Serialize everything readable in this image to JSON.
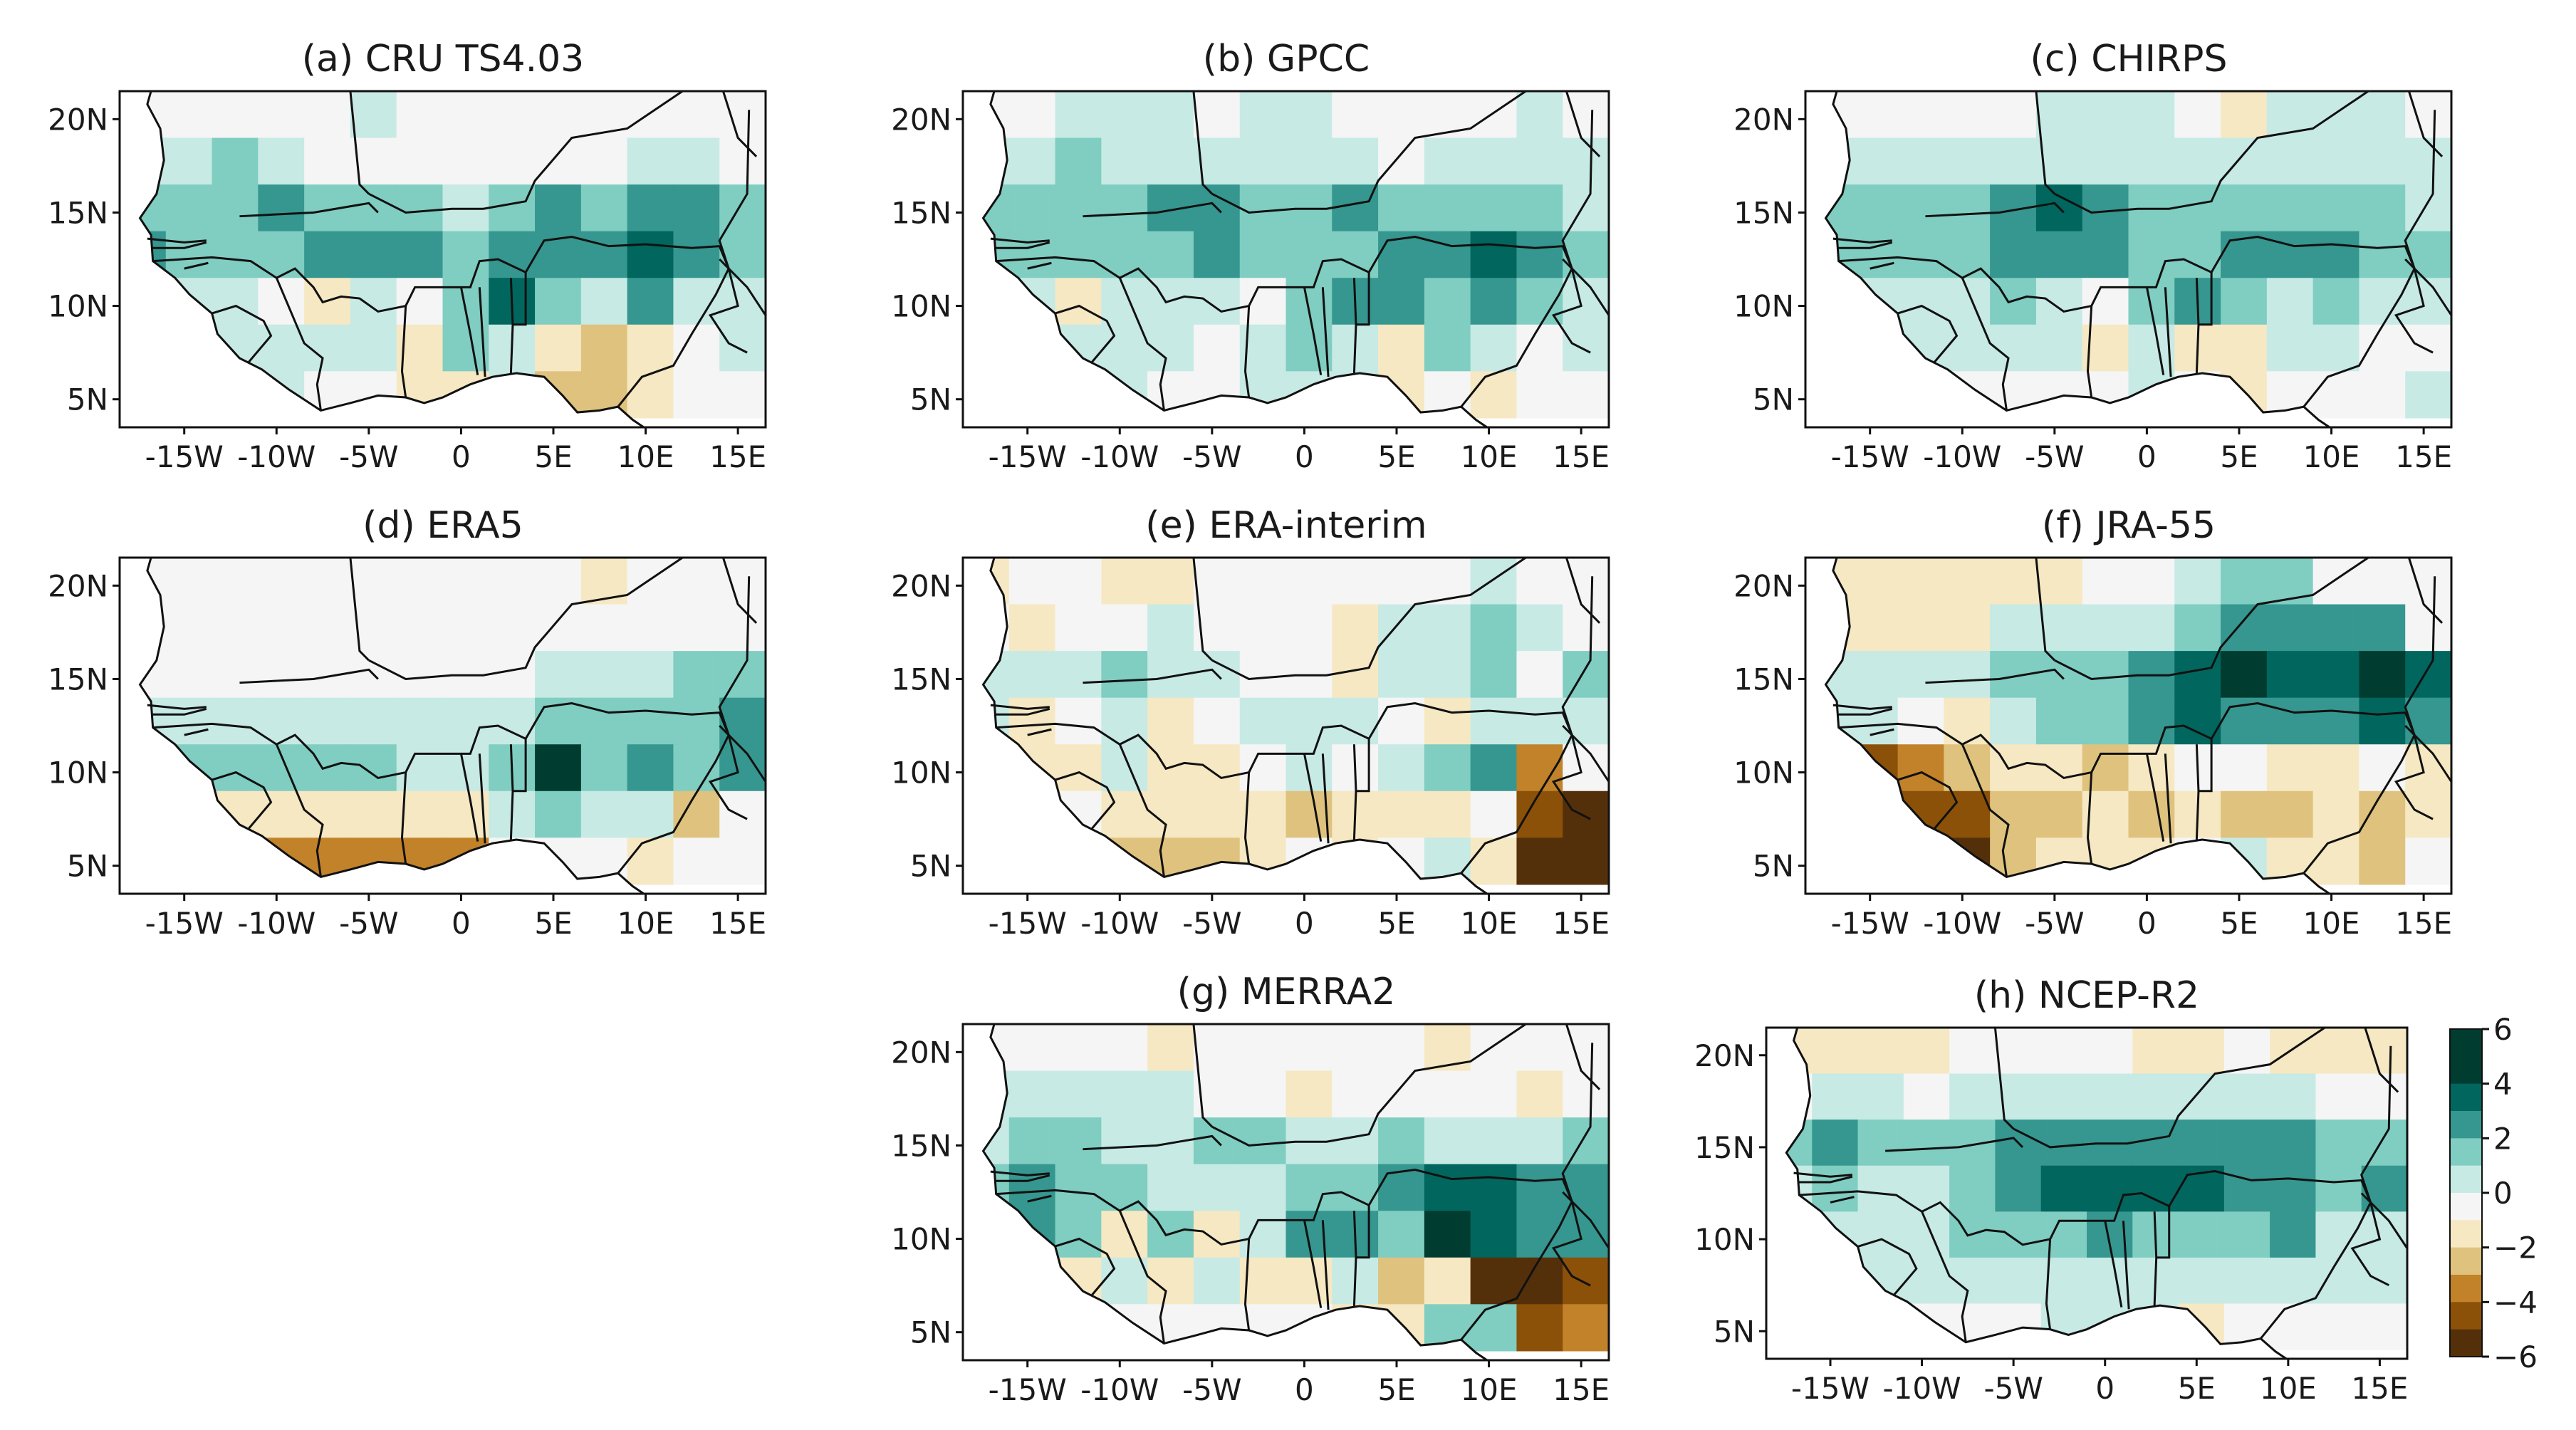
{
  "figure": {
    "description_axes": "longitude vs latitude",
    "colors": {
      "diverging_scale": [
        "#54300a",
        "#8c5109",
        "#c1822a",
        "#dfc27d",
        "#f6e8c3",
        "#f5f5f5",
        "#c7eae5",
        "#80cdc1",
        "#35978f",
        "#01665e",
        "#003c30"
      ],
      "land_outline": "#111111"
    }
  },
  "chart_data": [
    {
      "type": "heatmap",
      "panel": "a",
      "title": "(a) CRU TS4.03",
      "x_ticks": [
        "-15W",
        "-10W",
        "-5W",
        "0",
        "5E",
        "10E",
        "15E"
      ],
      "y_ticks": [
        "20N",
        "15N",
        "10N",
        "5N"
      ],
      "xlim": [
        -18.5,
        16.5
      ],
      "ylim": [
        3.5,
        21.5
      ],
      "grid_lon0": -18.5,
      "grid_lat0": 21.5,
      "cell_deg": 2.5,
      "grid": [
        [
          0,
          0,
          0,
          0,
          0,
          1,
          0,
          0,
          0,
          0,
          0,
          0,
          0,
          0
        ],
        [
          1,
          1,
          2,
          1,
          0,
          0,
          0,
          0,
          0,
          0,
          0,
          1,
          1,
          0
        ],
        [
          2,
          2,
          2,
          3,
          2,
          2,
          2,
          1,
          2,
          3,
          2,
          3,
          3,
          2
        ],
        [
          3,
          2,
          2,
          2,
          3,
          3,
          3,
          2,
          3,
          3,
          3,
          4,
          3,
          2
        ],
        [
          1,
          1,
          1,
          0,
          -1,
          1,
          0,
          2,
          4,
          2,
          1,
          3,
          1,
          1
        ],
        [
          1,
          3,
          1,
          1,
          1,
          1,
          -1,
          2,
          1,
          -1,
          -2,
          -1,
          0,
          1
        ],
        [
          0,
          1,
          1,
          1,
          0,
          0,
          -1,
          -1,
          1,
          -2,
          -2,
          -1,
          0,
          0
        ]
      ]
    },
    {
      "type": "heatmap",
      "panel": "b",
      "title": "(b) GPCC",
      "x_ticks": [
        "-15W",
        "-10W",
        "-5W",
        "0",
        "5E",
        "10E",
        "15E"
      ],
      "y_ticks": [
        "20N",
        "15N",
        "10N",
        "5N"
      ],
      "xlim": [
        -18.5,
        16.5
      ],
      "ylim": [
        3.5,
        21.5
      ],
      "grid_lon0": -18.5,
      "grid_lat0": 21.5,
      "cell_deg": 2.5,
      "grid": [
        [
          0,
          0,
          1,
          1,
          1,
          0,
          1,
          1,
          0,
          0,
          0,
          0,
          1,
          0
        ],
        [
          1,
          1,
          2,
          1,
          1,
          1,
          1,
          1,
          1,
          0,
          1,
          1,
          1,
          1
        ],
        [
          2,
          2,
          2,
          2,
          3,
          3,
          2,
          2,
          3,
          2,
          2,
          2,
          2,
          1
        ],
        [
          2,
          2,
          2,
          2,
          2,
          3,
          2,
          2,
          2,
          3,
          3,
          4,
          3,
          2
        ],
        [
          1,
          1,
          -1,
          1,
          1,
          1,
          0,
          2,
          3,
          3,
          2,
          3,
          2,
          1
        ],
        [
          1,
          -1,
          1,
          1,
          1,
          0,
          1,
          2,
          1,
          -1,
          2,
          1,
          0,
          1
        ],
        [
          0,
          0,
          1,
          1,
          0,
          0,
          1,
          1,
          1,
          -1,
          0,
          -1,
          0,
          0
        ]
      ]
    },
    {
      "type": "heatmap",
      "panel": "c",
      "title": "(c) CHIRPS",
      "x_ticks": [
        "-15W",
        "-10W",
        "-5W",
        "0",
        "5E",
        "10E",
        "15E"
      ],
      "y_ticks": [
        "20N",
        "15N",
        "10N",
        "5N"
      ],
      "xlim": [
        -18.5,
        16.5
      ],
      "ylim": [
        3.5,
        21.5
      ],
      "grid_lon0": -18.5,
      "grid_lat0": 21.5,
      "cell_deg": 2.5,
      "grid": [
        [
          0,
          0,
          0,
          0,
          0,
          1,
          1,
          1,
          0,
          -1,
          1,
          1,
          1,
          0
        ],
        [
          1,
          1,
          1,
          1,
          1,
          1,
          1,
          1,
          1,
          1,
          1,
          1,
          1,
          1
        ],
        [
          2,
          2,
          2,
          2,
          3,
          4,
          3,
          2,
          2,
          2,
          2,
          2,
          2,
          1
        ],
        [
          2,
          2,
          2,
          2,
          3,
          3,
          3,
          2,
          2,
          3,
          3,
          3,
          2,
          2
        ],
        [
          2,
          1,
          1,
          1,
          2,
          1,
          0,
          2,
          3,
          2,
          1,
          2,
          1,
          1
        ],
        [
          1,
          2,
          1,
          1,
          1,
          1,
          -1,
          1,
          -1,
          -1,
          1,
          1,
          0,
          0
        ],
        [
          0,
          1,
          1,
          0,
          0,
          0,
          0,
          1,
          0,
          -1,
          0,
          0,
          0,
          1
        ]
      ]
    },
    {
      "type": "heatmap",
      "panel": "d",
      "title": "(d) ERA5",
      "x_ticks": [
        "-15W",
        "-10W",
        "-5W",
        "0",
        "5E",
        "10E",
        "15E"
      ],
      "y_ticks": [
        "20N",
        "15N",
        "10N",
        "5N"
      ],
      "xlim": [
        -18.5,
        16.5
      ],
      "ylim": [
        3.5,
        21.5
      ],
      "grid_lon0": -18.5,
      "grid_lat0": 21.5,
      "cell_deg": 2.5,
      "grid": [
        [
          0,
          0,
          0,
          0,
          0,
          0,
          0,
          0,
          0,
          0,
          -1,
          0,
          0,
          0
        ],
        [
          0,
          0,
          0,
          0,
          0,
          0,
          0,
          0,
          0,
          0,
          0,
          0,
          0,
          0
        ],
        [
          0,
          0,
          0,
          0,
          0,
          0,
          0,
          0,
          0,
          1,
          1,
          1,
          2,
          2
        ],
        [
          1,
          1,
          1,
          1,
          1,
          1,
          1,
          1,
          1,
          2,
          2,
          2,
          2,
          3
        ],
        [
          1,
          2,
          2,
          2,
          2,
          2,
          1,
          1,
          2,
          5,
          2,
          3,
          2,
          3
        ],
        [
          0,
          -1,
          -1,
          -1,
          -1,
          -1,
          -1,
          -1,
          1,
          2,
          1,
          1,
          -2,
          0
        ],
        [
          0,
          -2,
          -3,
          -3,
          -3,
          -3,
          -3,
          -3,
          0,
          0,
          0,
          -1,
          0,
          0
        ]
      ]
    },
    {
      "type": "heatmap",
      "panel": "e",
      "title": "(e) ERA-interim",
      "x_ticks": [
        "-15W",
        "-10W",
        "-5W",
        "0",
        "5E",
        "10E",
        "15E"
      ],
      "y_ticks": [
        "20N",
        "15N",
        "10N",
        "5N"
      ],
      "xlim": [
        -18.5,
        16.5
      ],
      "ylim": [
        3.5,
        21.5
      ],
      "grid_lon0": -18.5,
      "grid_lat0": 21.5,
      "cell_deg": 2.5,
      "grid": [
        [
          -1,
          0,
          0,
          -1,
          -1,
          0,
          0,
          0,
          0,
          0,
          0,
          1,
          0,
          0
        ],
        [
          0,
          -1,
          0,
          0,
          1,
          0,
          0,
          0,
          -1,
          1,
          1,
          2,
          1,
          0
        ],
        [
          1,
          1,
          1,
          2,
          1,
          1,
          0,
          0,
          -1,
          1,
          1,
          2,
          0,
          2
        ],
        [
          1,
          -1,
          0,
          1,
          -1,
          0,
          1,
          1,
          1,
          0,
          -1,
          1,
          1,
          1
        ],
        [
          0,
          -1,
          -1,
          1,
          -1,
          -1,
          0,
          1,
          0,
          1,
          2,
          3,
          -3,
          0
        ],
        [
          0,
          2,
          0,
          -1,
          -1,
          -1,
          -1,
          -2,
          -1,
          -1,
          -1,
          0,
          -4,
          -5
        ],
        [
          0,
          0,
          0,
          -2,
          -2,
          -2,
          -1,
          0,
          -1,
          0,
          1,
          -1,
          -6,
          -5
        ]
      ]
    },
    {
      "type": "heatmap",
      "panel": "f",
      "title": "(f) JRA-55",
      "x_ticks": [
        "-15W",
        "-10W",
        "-5W",
        "0",
        "5E",
        "10E",
        "15E"
      ],
      "y_ticks": [
        "20N",
        "15N",
        "10N",
        "5N"
      ],
      "xlim": [
        -18.5,
        16.5
      ],
      "ylim": [
        3.5,
        21.5
      ],
      "grid_lon0": -18.5,
      "grid_lat0": 21.5,
      "cell_deg": 2.5,
      "grid": [
        [
          -1,
          -1,
          -1,
          -1,
          -1,
          -1,
          0,
          0,
          1,
          2,
          2,
          0,
          0,
          0
        ],
        [
          -1,
          -1,
          -1,
          -1,
          1,
          1,
          1,
          1,
          2,
          3,
          3,
          3,
          3,
          0
        ],
        [
          1,
          1,
          1,
          1,
          2,
          2,
          2,
          3,
          4,
          5,
          4,
          4,
          5,
          4
        ],
        [
          1,
          1,
          0,
          -1,
          1,
          2,
          2,
          3,
          4,
          3,
          3,
          3,
          4,
          3
        ],
        [
          -3,
          -4,
          -3,
          -2,
          -1,
          -1,
          -2,
          -1,
          0,
          0,
          -1,
          -1,
          0,
          -1
        ],
        [
          -1,
          -5,
          -4,
          -4,
          -2,
          -2,
          -1,
          -2,
          -1,
          -2,
          -2,
          -1,
          -2,
          -1
        ],
        [
          0,
          -2,
          -3,
          -5,
          -2,
          -1,
          -1,
          -1,
          0,
          1,
          -1,
          -1,
          -2,
          0
        ]
      ]
    },
    {
      "type": "heatmap",
      "panel": "g",
      "title": "(g) MERRA2",
      "x_ticks": [
        "-15W",
        "-10W",
        "-5W",
        "0",
        "5E",
        "10E",
        "15E"
      ],
      "y_ticks": [
        "20N",
        "15N",
        "10N",
        "5N"
      ],
      "xlim": [
        -18.5,
        16.5
      ],
      "ylim": [
        3.5,
        21.5
      ],
      "grid_lon0": -18.5,
      "grid_lat0": 21.5,
      "cell_deg": 2.5,
      "grid": [
        [
          0,
          0,
          0,
          0,
          -1,
          0,
          0,
          0,
          0,
          0,
          -1,
          0,
          0,
          0
        ],
        [
          1,
          1,
          1,
          1,
          1,
          0,
          0,
          -1,
          0,
          0,
          0,
          0,
          -1,
          0
        ],
        [
          1,
          2,
          2,
          1,
          1,
          2,
          2,
          1,
          1,
          2,
          1,
          1,
          1,
          2
        ],
        [
          2,
          3,
          2,
          2,
          1,
          1,
          1,
          2,
          2,
          3,
          4,
          4,
          3,
          3
        ],
        [
          -4,
          3,
          2,
          -1,
          2,
          -1,
          1,
          3,
          3,
          2,
          5,
          4,
          3,
          3
        ],
        [
          -1,
          -1,
          -1,
          1,
          -1,
          1,
          -1,
          -1,
          1,
          -2,
          -1,
          -5,
          -5,
          -4
        ],
        [
          0,
          0,
          -1,
          0,
          0,
          0,
          0,
          0,
          -1,
          -1,
          2,
          2,
          -4,
          -3
        ]
      ]
    },
    {
      "type": "heatmap",
      "panel": "h",
      "title": "(h) NCEP-R2",
      "x_ticks": [
        "-15W",
        "-10W",
        "-5W",
        "0",
        "5E",
        "10E",
        "15E"
      ],
      "y_ticks": [
        "20N",
        "15N",
        "10N",
        "5N"
      ],
      "xlim": [
        -18.5,
        16.5
      ],
      "ylim": [
        3.5,
        21.5
      ],
      "grid_lon0": -18.5,
      "grid_lat0": 21.5,
      "cell_deg": 2.5,
      "grid": [
        [
          -1,
          -1,
          -1,
          -1,
          0,
          0,
          0,
          0,
          -1,
          -1,
          0,
          -1,
          -1,
          -1
        ],
        [
          0,
          1,
          1,
          0,
          1,
          1,
          1,
          1,
          1,
          1,
          1,
          1,
          0,
          0
        ],
        [
          2,
          3,
          2,
          2,
          2,
          3,
          3,
          3,
          3,
          3,
          3,
          3,
          2,
          2
        ],
        [
          1,
          2,
          1,
          1,
          2,
          3,
          4,
          4,
          4,
          4,
          3,
          3,
          2,
          3
        ],
        [
          0,
          1,
          1,
          1,
          2,
          2,
          2,
          3,
          2,
          2,
          2,
          3,
          1,
          1
        ],
        [
          -1,
          1,
          1,
          1,
          1,
          1,
          1,
          1,
          1,
          1,
          1,
          1,
          1,
          1
        ],
        [
          0,
          -1,
          0,
          0,
          0,
          0,
          1,
          1,
          1,
          -1,
          0,
          0,
          0,
          0
        ]
      ]
    }
  ],
  "colorbar": {
    "ticks": [
      "6",
      "4",
      "2",
      "0",
      "−2",
      "−4",
      "−6"
    ],
    "range": [
      -6,
      6
    ]
  }
}
